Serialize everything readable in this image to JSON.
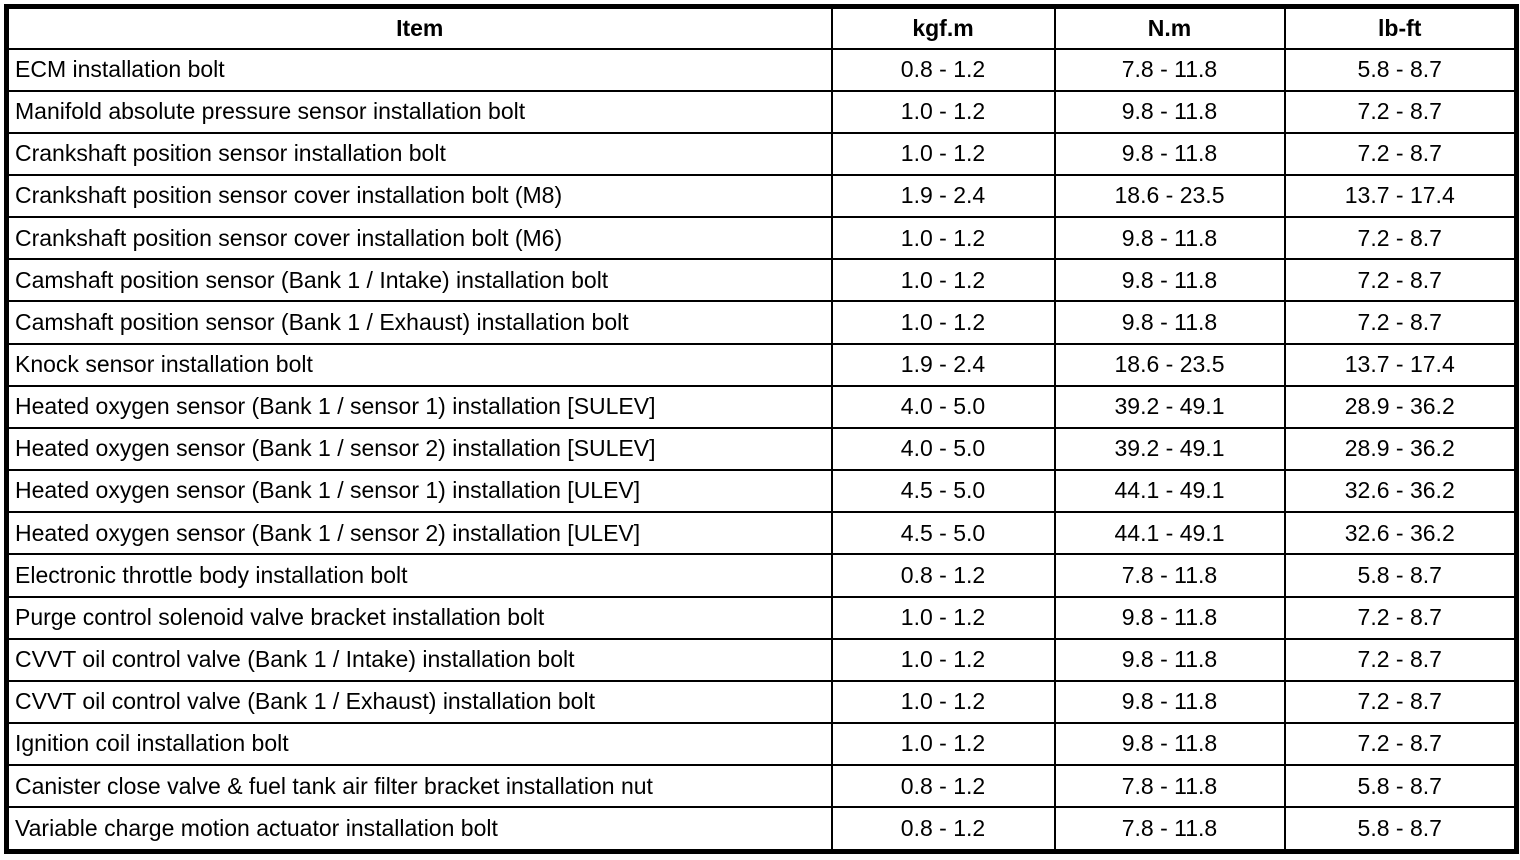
{
  "colors": {
    "border": "#000000",
    "background": "#ffffff",
    "text": "#000000"
  },
  "table": {
    "headers": {
      "item": "Item",
      "kgf": "kgf.m",
      "nm": "N.m",
      "lbft": "lb-ft"
    },
    "rows": [
      {
        "item": "ECM installation bolt",
        "kgf": "0.8 - 1.2",
        "nm": "7.8 - 11.8",
        "lbft": "5.8 - 8.7"
      },
      {
        "item": "Manifold absolute pressure sensor installation bolt",
        "kgf": "1.0 - 1.2",
        "nm": "9.8 - 11.8",
        "lbft": "7.2 - 8.7"
      },
      {
        "item": "Crankshaft position sensor installation bolt",
        "kgf": "1.0 - 1.2",
        "nm": "9.8 - 11.8",
        "lbft": "7.2 - 8.7"
      },
      {
        "item": "Crankshaft position sensor cover installation bolt (M8)",
        "kgf": "1.9 - 2.4",
        "nm": "18.6 - 23.5",
        "lbft": "13.7 - 17.4"
      },
      {
        "item": "Crankshaft position sensor cover installation bolt (M6)",
        "kgf": "1.0 - 1.2",
        "nm": "9.8 - 11.8",
        "lbft": "7.2 - 8.7"
      },
      {
        "item": "Camshaft position sensor (Bank 1 / Intake) installation bolt",
        "kgf": "1.0 - 1.2",
        "nm": "9.8 - 11.8",
        "lbft": "7.2 - 8.7"
      },
      {
        "item": "Camshaft position sensor (Bank 1 / Exhaust) installation bolt",
        "kgf": "1.0 - 1.2",
        "nm": "9.8 - 11.8",
        "lbft": "7.2 - 8.7"
      },
      {
        "item": "Knock sensor installation bolt",
        "kgf": "1.9 - 2.4",
        "nm": "18.6 - 23.5",
        "lbft": "13.7 - 17.4"
      },
      {
        "item": "Heated oxygen sensor (Bank 1 / sensor 1) installation [SULEV]",
        "kgf": "4.0 - 5.0",
        "nm": "39.2 - 49.1",
        "lbft": "28.9 - 36.2"
      },
      {
        "item": "Heated oxygen sensor (Bank 1 / sensor 2) installation [SULEV]",
        "kgf": "4.0 - 5.0",
        "nm": "39.2 - 49.1",
        "lbft": "28.9 - 36.2"
      },
      {
        "item": "Heated oxygen sensor (Bank 1 / sensor 1) installation [ULEV]",
        "kgf": "4.5 - 5.0",
        "nm": "44.1 - 49.1",
        "lbft": "32.6 - 36.2"
      },
      {
        "item": "Heated oxygen sensor (Bank 1 / sensor 2) installation [ULEV]",
        "kgf": "4.5 - 5.0",
        "nm": "44.1 - 49.1",
        "lbft": "32.6 - 36.2"
      },
      {
        "item": "Electronic throttle body installation bolt",
        "kgf": "0.8 - 1.2",
        "nm": "7.8 - 11.8",
        "lbft": "5.8 - 8.7"
      },
      {
        "item": "Purge control solenoid valve bracket installation bolt",
        "kgf": "1.0 - 1.2",
        "nm": "9.8 - 11.8",
        "lbft": "7.2 - 8.7"
      },
      {
        "item": "CVVT oil control valve (Bank 1 / Intake) installation bolt",
        "kgf": "1.0 - 1.2",
        "nm": "9.8 - 11.8",
        "lbft": "7.2 - 8.7"
      },
      {
        "item": "CVVT oil control valve (Bank 1 / Exhaust) installation bolt",
        "kgf": "1.0 - 1.2",
        "nm": "9.8 - 11.8",
        "lbft": "7.2 - 8.7"
      },
      {
        "item": "Ignition coil installation bolt",
        "kgf": "1.0 - 1.2",
        "nm": "9.8 - 11.8",
        "lbft": "7.2 - 8.7"
      },
      {
        "item": "Canister close valve & fuel tank air filter bracket installation nut",
        "kgf": "0.8 - 1.2",
        "nm": "7.8 - 11.8",
        "lbft": "5.8 - 8.7"
      },
      {
        "item": "Variable charge motion actuator installation bolt",
        "kgf": "0.8 - 1.2",
        "nm": "7.8 - 11.8",
        "lbft": "5.8 - 8.7"
      }
    ]
  }
}
